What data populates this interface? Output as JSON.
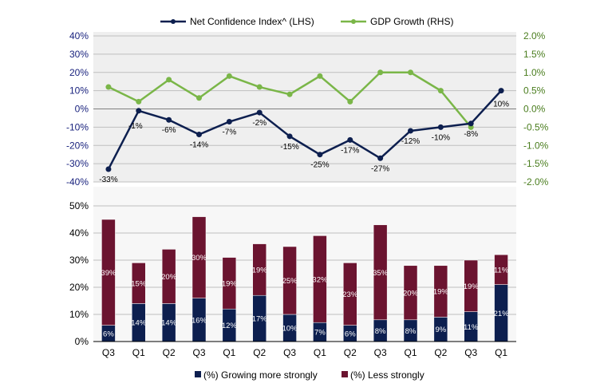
{
  "colors": {
    "navy": "#0d1f4f",
    "green": "#7ab648",
    "maroon": "#6b1430",
    "axis_left": "#1a237e",
    "axis_right": "#4a7d1e",
    "grid": "#bfbfbf",
    "panel_top": "#efefef",
    "panel_bottom": "#f7f7f7"
  },
  "chart_data": [
    {
      "type": "line",
      "name": "confidence-vs-gdp",
      "legend": {
        "position": "top",
        "items": [
          {
            "label": "Net Confidence Index^ (LHS)",
            "color": "#0d1f4f"
          },
          {
            "label": "GDP Growth (RHS)",
            "color": "#7ab648"
          }
        ]
      },
      "y_left": {
        "ylim": [
          -40,
          40
        ],
        "ticks": [
          40,
          30,
          20,
          10,
          0,
          -10,
          -20,
          -30,
          -40
        ],
        "tick_labels": [
          "40%",
          "30%",
          "20%",
          "10%",
          "0%",
          "-10%",
          "-20%",
          "-30%",
          "-40%"
        ]
      },
      "y_right": {
        "ylim": [
          -2.0,
          2.0
        ],
        "ticks": [
          2.0,
          1.5,
          1.0,
          0.5,
          0.0,
          -0.5,
          -1.0,
          -1.5,
          -2.0
        ],
        "tick_labels": [
          "2.0%",
          "1.5%",
          "1.0%",
          "0.5%",
          "0.0%",
          "-0.5%",
          "-1.0%",
          "-1.5%",
          "-2.0%"
        ]
      },
      "series": [
        {
          "name": "Net Confidence Index^ (LHS)",
          "axis": "left",
          "values": [
            -33,
            -1,
            -6,
            -14,
            -7,
            -2,
            -15,
            -25,
            -17,
            -27,
            -12,
            -10,
            -8,
            10
          ],
          "labels": [
            "-33%",
            "-1%",
            "-6%",
            "-14%",
            "-7%",
            "-2%",
            "-15%",
            "-25%",
            "-17%",
            "-27%",
            "-12%",
            "-10%",
            "-8%",
            "10%"
          ]
        },
        {
          "name": "GDP Growth (RHS)",
          "axis": "right",
          "values": [
            0.6,
            0.2,
            0.8,
            0.3,
            0.9,
            0.6,
            0.4,
            0.9,
            0.2,
            1.0,
            1.0,
            0.5,
            -0.5
          ]
        }
      ]
    },
    {
      "type": "bar",
      "stacked": true,
      "name": "growth-expectations",
      "categories": [
        "Q3",
        "Q1",
        "Q2",
        "Q3",
        "Q1",
        "Q2",
        "Q3",
        "Q1",
        "Q2",
        "Q3",
        "Q1",
        "Q2",
        "Q3",
        "Q1"
      ],
      "ylim": [
        0,
        50
      ],
      "ticks": [
        50,
        40,
        30,
        20,
        10,
        0
      ],
      "tick_labels": [
        "50%",
        "40%",
        "30%",
        "20%",
        "10%",
        "0%"
      ],
      "legend": {
        "position": "bottom",
        "items": [
          {
            "label": "(%) Growing more strongly",
            "color": "#0d1f4f"
          },
          {
            "label": "(%) Less strongly",
            "color": "#6b1430"
          }
        ]
      },
      "series": [
        {
          "name": "(%) Growing more strongly",
          "values": [
            6,
            14,
            14,
            16,
            12,
            17,
            10,
            7,
            6,
            8,
            8,
            9,
            11,
            21
          ],
          "labels": [
            "6%",
            "14%",
            "14%",
            "16%",
            "12%",
            "17%",
            "10%",
            "7%",
            "6%",
            "8%",
            "8%",
            "9%",
            "11%",
            "21%"
          ]
        },
        {
          "name": "(%) Less strongly",
          "values": [
            39,
            15,
            20,
            30,
            19,
            19,
            25,
            32,
            23,
            35,
            20,
            19,
            19,
            11
          ],
          "labels": [
            "39%",
            "15%",
            "20%",
            "30%",
            "19%",
            "19%",
            "25%",
            "32%",
            "23%",
            "35%",
            "20%",
            "19%",
            "19%",
            "11%"
          ]
        }
      ]
    }
  ]
}
